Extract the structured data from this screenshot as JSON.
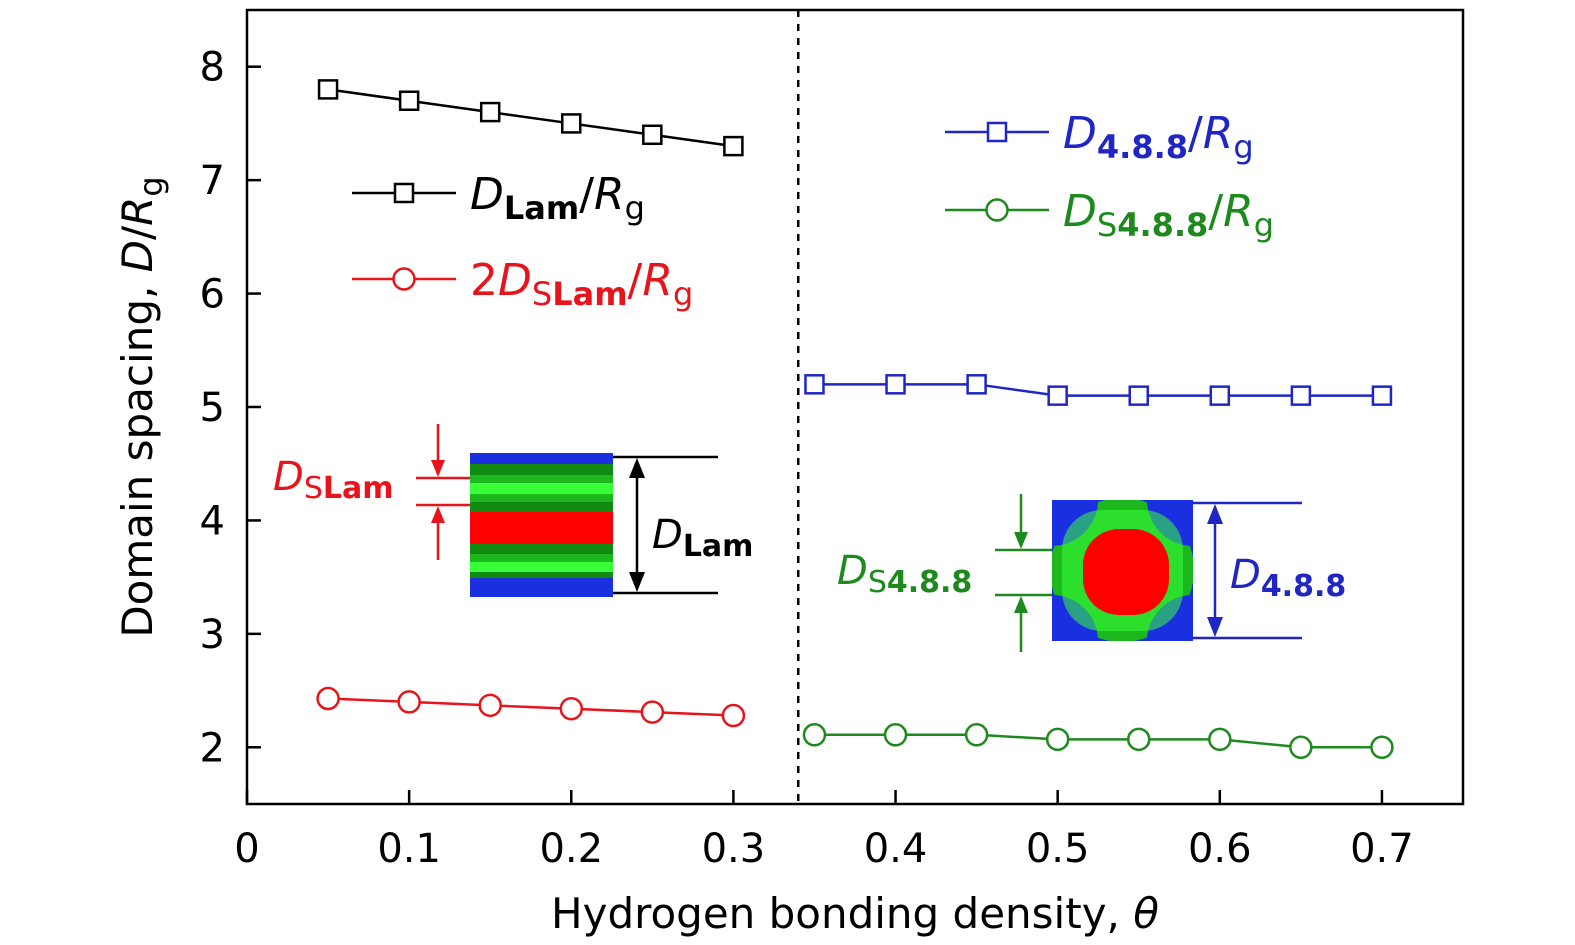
{
  "chart_data": {
    "type": "line",
    "xlabel": "Hydrogen bonding density,",
    "xlabel_symbol": "θ",
    "ylabel": "Domain spacing,",
    "ylabel_D": "D",
    "ylabel_slash": "/",
    "ylabel_R": "R",
    "ylabel_sub": "g",
    "xlim": [
      0,
      0.75
    ],
    "ylim": [
      1.5,
      8.5
    ],
    "xticks": [
      0,
      0.1,
      0.2,
      0.3,
      0.4,
      0.5,
      0.6,
      0.7
    ],
    "xtick_labels": [
      "0",
      "0.1",
      "0.2",
      "0.3",
      "0.4",
      "0.5",
      "0.6",
      "0.7"
    ],
    "yticks": [
      2,
      3,
      4,
      5,
      6,
      7,
      8
    ],
    "ytick_labels": [
      "2",
      "3",
      "4",
      "5",
      "6",
      "7",
      "8"
    ],
    "grid": false,
    "phase_boundary_x": 0.34,
    "series": [
      {
        "name": "D_Lam/R_g",
        "color": "#000000",
        "marker": "square",
        "x": [
          0.05,
          0.1,
          0.15,
          0.2,
          0.25,
          0.3
        ],
        "y": [
          7.8,
          7.7,
          7.6,
          7.5,
          7.4,
          7.3
        ]
      },
      {
        "name": "2D_SLam/R_g",
        "color": "#e8141c",
        "marker": "circle",
        "x": [
          0.05,
          0.1,
          0.15,
          0.2,
          0.25,
          0.3
        ],
        "y": [
          2.43,
          2.4,
          2.37,
          2.34,
          2.31,
          2.28
        ]
      },
      {
        "name": "D_4.8.8/R_g",
        "color": "#1f26c4",
        "marker": "square",
        "x": [
          0.35,
          0.4,
          0.45,
          0.5,
          0.55,
          0.6,
          0.65,
          0.7
        ],
        "y": [
          5.2,
          5.2,
          5.2,
          5.1,
          5.1,
          5.1,
          5.1,
          5.1
        ]
      },
      {
        "name": "D_S4.8.8/R_g",
        "color": "#1e8a1e",
        "marker": "circle",
        "x": [
          0.35,
          0.4,
          0.45,
          0.5,
          0.55,
          0.6,
          0.65,
          0.7
        ],
        "y": [
          2.11,
          2.11,
          2.11,
          2.07,
          2.07,
          2.07,
          2.0,
          2.0
        ]
      }
    ],
    "legend": [
      {
        "series": 0,
        "prefix": "",
        "D": "D",
        "sub1": "",
        "sub2": "Lam",
        "slash": "/",
        "R": "R",
        "g": "g",
        "color": "#000000"
      },
      {
        "series": 1,
        "prefix": "2",
        "D": "D",
        "sub1": "S",
        "sub2": "Lam",
        "slash": "/",
        "R": "R",
        "g": "g",
        "color": "#e8141c"
      },
      {
        "series": 2,
        "prefix": "",
        "D": "D",
        "sub1": "",
        "sub2": "4.8.8",
        "slash": "/",
        "R": "R",
        "g": "g",
        "color": "#1f26c4"
      },
      {
        "series": 3,
        "prefix": "",
        "D": "D",
        "sub1": "S",
        "sub2": "4.8.8",
        "slash": "/",
        "R": "R",
        "g": "g",
        "color": "#1e8a1e"
      }
    ],
    "insets": {
      "lamellar": {
        "label_outer": {
          "D": "D",
          "sub": "Lam",
          "color": "#000000"
        },
        "label_inner": {
          "D": "D",
          "sub1": "S",
          "sub2": "Lam",
          "color": "#e8141c"
        }
      },
      "tetragonal": {
        "label_outer": {
          "D": "D",
          "sub": "4.8.8",
          "color": "#1f26c4"
        },
        "label_inner": {
          "D": "D",
          "sub1": "S",
          "sub2": "4.8.8",
          "color": "#1e8a1e"
        }
      }
    }
  }
}
